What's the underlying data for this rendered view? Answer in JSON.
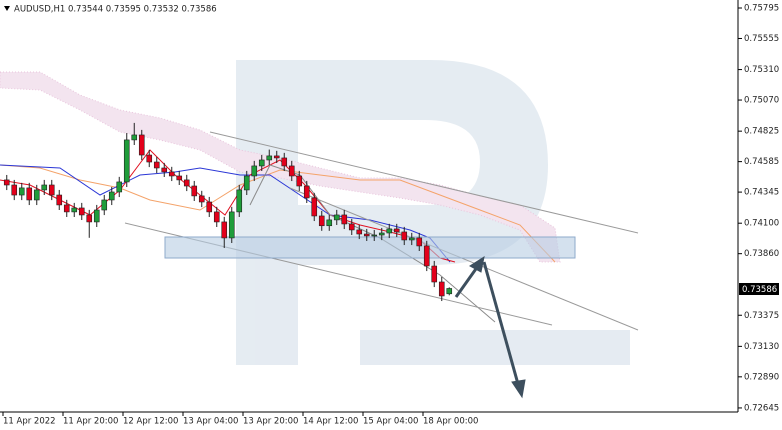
{
  "chart_data": {
    "type": "candlestick",
    "title": "AUDUSD,H1  0.73544 0.73595 0.73532 0.73586",
    "categories": [
      "11 Apr 2022",
      null,
      null,
      null,
      null,
      null,
      null,
      null,
      "11 Apr 20:00",
      null,
      null,
      null,
      null,
      null,
      null,
      null,
      "12 Apr 12:00",
      null,
      null,
      null,
      null,
      null,
      null,
      null,
      "13 Apr 04:00",
      null,
      null,
      null,
      null,
      null,
      null,
      null,
      "13 Apr 20:00",
      null,
      null,
      null,
      null,
      null,
      null,
      null,
      "14 Apr 12:00",
      null,
      null,
      null,
      null,
      null,
      null,
      null,
      "15 Apr 04:00",
      null,
      null,
      null,
      null,
      null,
      null,
      null,
      "18 Apr 00:00",
      null,
      null,
      null
    ],
    "open": [
      0.74441,
      0.74401,
      0.74322,
      0.74378,
      0.74283,
      0.74362,
      0.74401,
      0.74322,
      0.74244,
      0.74189,
      0.7422,
      0.74165,
      0.7411,
      0.74204,
      0.74283,
      0.74346,
      0.74425,
      0.74756,
      0.74795,
      0.74637,
      0.74582,
      0.74535,
      0.74504,
      0.74472,
      0.74441,
      0.74393,
      0.74315,
      0.74267,
      0.74189,
      0.7411,
      0.73984,
      0.74189,
      0.74362,
      0.74472,
      0.74551,
      0.74598,
      0.7463,
      0.74614,
      0.74551,
      0.74472,
      0.74393,
      0.74299,
      0.74157,
      0.7408,
      0.74126,
      0.74165,
      0.74094,
      0.74047,
      0.74015,
      0.74,
      0.74007,
      0.74023,
      0.74055,
      0.74031,
      0.73968,
      0.73984,
      0.73921,
      0.73763,
      0.73637,
      0.73544
    ],
    "high": [
      0.7448,
      0.74441,
      0.74418,
      0.74418,
      0.74402,
      0.74441,
      0.74441,
      0.74362,
      0.74284,
      0.7426,
      0.7426,
      0.74205,
      0.74244,
      0.74323,
      0.74386,
      0.74465,
      0.7481,
      0.7489,
      0.74835,
      0.74677,
      0.74622,
      0.74575,
      0.74544,
      0.74512,
      0.74481,
      0.74433,
      0.74355,
      0.74307,
      0.74229,
      0.7415,
      0.74229,
      0.74402,
      0.74512,
      0.74591,
      0.74638,
      0.7468,
      0.7467,
      0.74654,
      0.74591,
      0.74512,
      0.74433,
      0.74339,
      0.74197,
      0.74166,
      0.74205,
      0.74205,
      0.74134,
      0.74087,
      0.74055,
      0.74047,
      0.74063,
      0.74095,
      0.74095,
      0.74071,
      0.74024,
      0.74024,
      0.73961,
      0.73803,
      0.73677,
      0.73595
    ],
    "low": [
      0.74361,
      0.74282,
      0.74282,
      0.74243,
      0.74243,
      0.74322,
      0.74282,
      0.74204,
      0.74149,
      0.74149,
      0.74125,
      0.73985,
      0.7407,
      0.74164,
      0.74243,
      0.74306,
      0.74385,
      0.74716,
      0.74597,
      0.74542,
      0.74495,
      0.74464,
      0.74432,
      0.74401,
      0.74353,
      0.74275,
      0.74227,
      0.74149,
      0.7407,
      0.73905,
      0.73944,
      0.74149,
      0.74322,
      0.74432,
      0.74511,
      0.74558,
      0.74574,
      0.74511,
      0.74432,
      0.74353,
      0.74259,
      0.74117,
      0.7404,
      0.7404,
      0.74086,
      0.74054,
      0.74007,
      0.73975,
      0.7396,
      0.7396,
      0.73967,
      0.73983,
      0.73991,
      0.73928,
      0.73928,
      0.73881,
      0.73723,
      0.73597,
      0.73487,
      0.73532
    ],
    "close": [
      0.74401,
      0.74322,
      0.74378,
      0.74283,
      0.74362,
      0.74401,
      0.74322,
      0.74244,
      0.74189,
      0.7422,
      0.74165,
      0.7411,
      0.74204,
      0.74283,
      0.74346,
      0.74425,
      0.74756,
      0.74795,
      0.74637,
      0.74582,
      0.74535,
      0.74504,
      0.74472,
      0.74441,
      0.74393,
      0.74315,
      0.74267,
      0.74189,
      0.7411,
      0.73984,
      0.74189,
      0.74362,
      0.74472,
      0.74551,
      0.74598,
      0.7463,
      0.74614,
      0.74551,
      0.74472,
      0.74393,
      0.74299,
      0.74157,
      0.7408,
      0.74126,
      0.74165,
      0.74094,
      0.74047,
      0.74015,
      0.74,
      0.74007,
      0.74023,
      0.74055,
      0.74031,
      0.73968,
      0.73984,
      0.73921,
      0.73763,
      0.73637,
      0.73527,
      0.73586
    ],
    "up_color": "#1f9d3a",
    "down_color": "#e3001b",
    "ylim": [
      0.72613,
      0.75858
    ],
    "yticks": [
      0.75795,
      0.75555,
      {
        "value": 0.7531,
        "label": "0.75310"
      },
      {
        "value": 0.7507,
        "label": "0.75070"
      },
      0.74825,
      0.74585,
      0.74345,
      {
        "value": 0.741,
        "label": "0.74100"
      },
      {
        "value": 0.7386,
        "label": "0.73860"
      },
      0.73375,
      {
        "value": 0.7313,
        "label": "0.73130"
      },
      {
        "value": 0.7289,
        "label": "0.72890"
      },
      0.72645
    ]
  }
}
